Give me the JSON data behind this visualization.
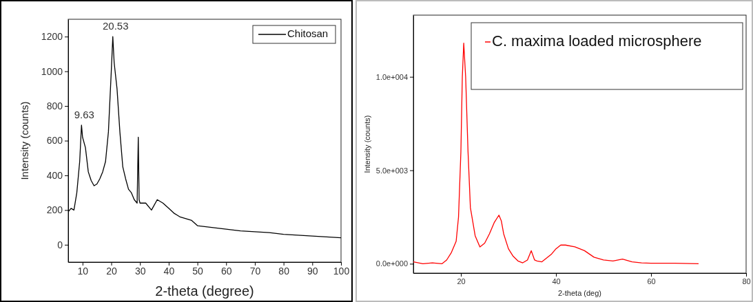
{
  "chart_data": [
    {
      "type": "line",
      "xlabel": "2-theta (degree)",
      "ylabel": "Intensity (counts)",
      "xlim": [
        5,
        100
      ],
      "ylim": [
        -100,
        1300
      ],
      "xticks": [
        10,
        20,
        30,
        40,
        50,
        60,
        70,
        80,
        90,
        100
      ],
      "yticks": [
        0,
        200,
        400,
        600,
        800,
        1000,
        1200
      ],
      "legend": "top right",
      "annotations": [
        {
          "text": "9.63",
          "x": 9.63,
          "y": 690
        },
        {
          "text": "20.53",
          "x": 20.53,
          "y": 1200
        }
      ],
      "series": [
        {
          "name": "Chitosan",
          "color": "#000000",
          "x": [
            5,
            6,
            7,
            8,
            9,
            9.63,
            10,
            11,
            12,
            13,
            14,
            15,
            16,
            17,
            18,
            19,
            20,
            20.53,
            21,
            22,
            23,
            24,
            25,
            26,
            27,
            28,
            29,
            29.4,
            29.7,
            30,
            32,
            34,
            36,
            38,
            40,
            42,
            44,
            46,
            48,
            50,
            55,
            60,
            65,
            70,
            75,
            80,
            85,
            90,
            95,
            100
          ],
          "values": [
            190,
            210,
            200,
            300,
            480,
            690,
            620,
            560,
            420,
            370,
            340,
            350,
            380,
            420,
            480,
            650,
            1000,
            1200,
            1050,
            900,
            650,
            450,
            380,
            320,
            300,
            260,
            240,
            620,
            260,
            240,
            240,
            200,
            260,
            240,
            210,
            180,
            160,
            150,
            140,
            110,
            100,
            90,
            80,
            75,
            70,
            60,
            55,
            50,
            45,
            40
          ]
        }
      ]
    },
    {
      "type": "line",
      "xlabel": "2-theta (deg)",
      "ylabel": "Intensity (counts)",
      "xlim": [
        10,
        80
      ],
      "ylim": [
        -500,
        13300
      ],
      "xticks": [
        20,
        40,
        60,
        80
      ],
      "yticks": [
        {
          "value": 0,
          "label": "0.0e+000"
        },
        {
          "value": 5000,
          "label": "5.0e+003"
        },
        {
          "value": 10000,
          "label": "1.0e+004"
        }
      ],
      "legend": "top right",
      "series": [
        {
          "name": "C. maxima loaded microsphere",
          "color": "#ff0000",
          "x": [
            10,
            12,
            14,
            16,
            17,
            18,
            19,
            19.5,
            20,
            20.3,
            20.6,
            21,
            21.5,
            22,
            23,
            24,
            25,
            26,
            27,
            28,
            28.5,
            29,
            30,
            31,
            32,
            33,
            34,
            34.8,
            35.5,
            36,
            37,
            38,
            39,
            40,
            41,
            42,
            44,
            46,
            48,
            50,
            52,
            54,
            56,
            58,
            60,
            65,
            70
          ],
          "values": [
            100,
            0,
            50,
            0,
            200,
            600,
            1200,
            2500,
            6000,
            10000,
            11800,
            10000,
            6000,
            3000,
            1500,
            900,
            1100,
            1600,
            2200,
            2600,
            2300,
            1600,
            800,
            400,
            150,
            50,
            200,
            700,
            200,
            150,
            100,
            300,
            500,
            800,
            1000,
            1000,
            900,
            700,
            350,
            200,
            150,
            250,
            100,
            50,
            30,
            30,
            0
          ]
        }
      ]
    }
  ]
}
